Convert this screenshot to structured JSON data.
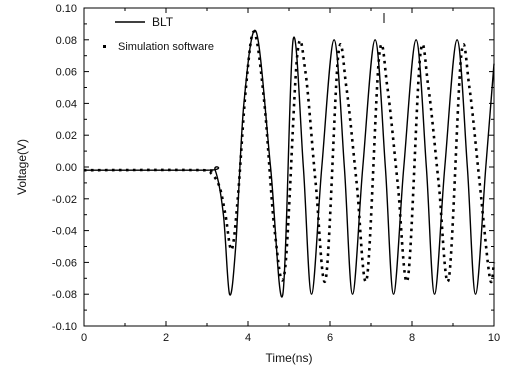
{
  "chart_data": {
    "type": "line",
    "title": "",
    "xlabel": "Time(ns)",
    "ylabel": "Voltage(V)",
    "xlim": [
      0,
      10
    ],
    "ylim": [
      -0.1,
      0.1
    ],
    "xticks": [
      "0",
      "2",
      "4",
      "6",
      "8",
      "10"
    ],
    "yticks": [
      "-0.10",
      "-0.08",
      "-0.06",
      "-0.04",
      "-0.02",
      "0.00",
      "0.02",
      "0.04",
      "0.06",
      "0.08",
      "0.10"
    ],
    "grid": false,
    "legend_position": "top-left",
    "series": [
      {
        "name": "BLT",
        "style": "solid",
        "color": "#000000",
        "x": [
          0,
          3.0,
          3.2,
          3.4,
          3.55,
          3.7,
          3.9,
          4.2,
          4.55,
          4.85,
          5.1,
          5.35,
          5.55,
          5.8,
          6.1,
          6.35,
          6.55,
          6.8,
          7.1,
          7.35,
          7.55,
          7.8,
          8.1,
          8.35,
          8.55,
          8.8,
          9.1,
          9.35,
          9.55,
          9.8,
          10.0
        ],
        "y": [
          -0.002,
          -0.002,
          -0.002,
          -0.03,
          -0.08,
          -0.05,
          0.04,
          0.085,
          0.0,
          -0.08,
          0.08,
          0.0,
          -0.08,
          0.0,
          0.08,
          0.0,
          -0.08,
          0.0,
          0.08,
          0.0,
          -0.08,
          0.0,
          0.08,
          0.0,
          -0.08,
          0.0,
          0.08,
          0.0,
          -0.08,
          0.0,
          0.065
        ]
      },
      {
        "name": "Simulation software",
        "style": "dotted",
        "color": "#000000",
        "x": [
          0,
          2.9,
          3.1,
          3.3,
          3.45,
          3.6,
          3.75,
          3.95,
          4.15,
          4.4,
          4.65,
          4.9,
          5.2,
          5.4,
          5.65,
          5.9,
          6.2,
          6.4,
          6.65,
          6.9,
          7.2,
          7.4,
          7.65,
          7.9,
          8.2,
          8.4,
          8.65,
          8.9,
          9.2,
          9.4,
          9.65,
          9.9,
          10.0
        ],
        "y": [
          -0.002,
          -0.002,
          -0.004,
          -0.012,
          -0.03,
          -0.052,
          -0.02,
          0.05,
          0.085,
          0.04,
          -0.04,
          -0.065,
          0.07,
          0.06,
          -0.01,
          -0.07,
          0.07,
          0.05,
          -0.01,
          -0.07,
          0.07,
          0.05,
          -0.01,
          -0.07,
          0.07,
          0.05,
          -0.01,
          -0.07,
          0.07,
          0.05,
          -0.01,
          -0.07,
          -0.06
        ]
      }
    ]
  }
}
